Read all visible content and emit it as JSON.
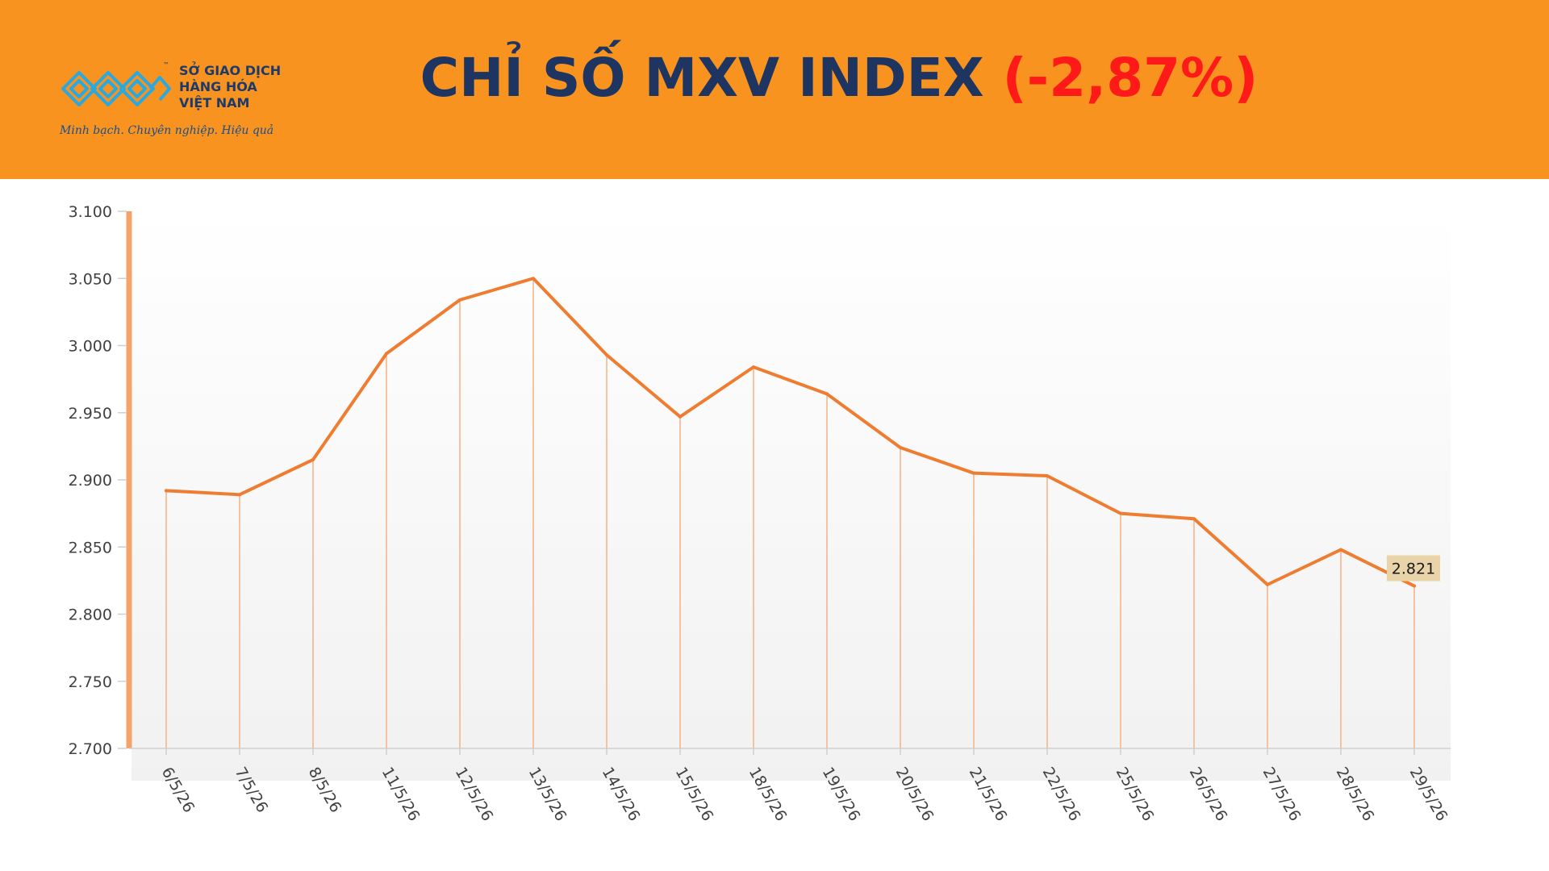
{
  "header": {
    "logo": {
      "lines": [
        "SỞ GIAO DỊCH",
        "HÀNG HÓA",
        "VIỆT NAM"
      ],
      "tm": "™",
      "tagline": "Minh bạch. Chuyên nghiệp. Hiệu quả",
      "colors": {
        "mark": "#29a9e1",
        "text": "#1d3a6b"
      }
    },
    "title_main": "CHỈ SỐ MXV INDEX",
    "title_change": "(-2,87%)",
    "colors": {
      "band": "#f7931e",
      "title": "#1e3461",
      "change": "#ff1a1a"
    }
  },
  "chart_data": {
    "type": "line",
    "categories": [
      "6/5/26",
      "7/5/26",
      "8/5/26",
      "11/5/26",
      "12/5/26",
      "13/5/26",
      "14/5/26",
      "15/5/26",
      "18/5/26",
      "19/5/26",
      "20/5/26",
      "21/5/26",
      "22/5/26",
      "25/5/26",
      "26/5/26",
      "27/5/26",
      "28/5/26",
      "29/5/26"
    ],
    "values": [
      2892,
      2889,
      2915,
      2994,
      3034,
      3050,
      2993,
      2947,
      2984,
      2964,
      2924,
      2905,
      2903,
      2875,
      2871,
      2822,
      2848,
      2821
    ],
    "y_ticks": [
      "3.100",
      "3.050",
      "3.000",
      "2.950",
      "2.900",
      "2.850",
      "2.800",
      "2.750",
      "2.700"
    ],
    "ylim": [
      2700,
      3100
    ],
    "y_step": 50,
    "data_label": "2.821",
    "title": "",
    "xlabel": "",
    "ylabel": "",
    "grid": false,
    "drop_lines": true,
    "colors": {
      "line": "#ee7d31",
      "drop": "#f4b183",
      "axis": "#f4a46a",
      "label_bg": "#e8d4a8"
    }
  }
}
